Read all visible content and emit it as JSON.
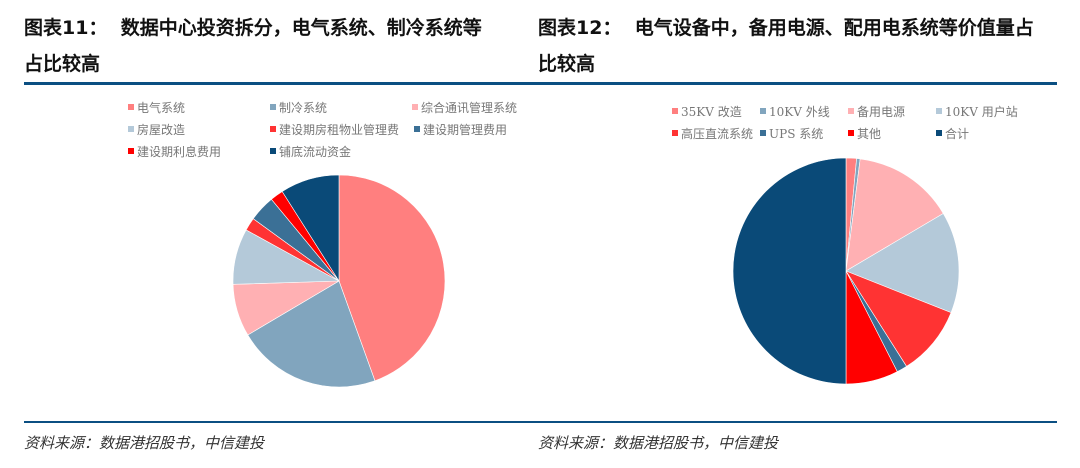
{
  "left_figure": {
    "label": "图表11：",
    "title_line1": "数据中心投资拆分，电气系统、制冷系统等",
    "title_line2": "占比较高",
    "source": "资料来源：数据港招股书，中信建投"
  },
  "right_figure": {
    "label": "图表12：",
    "title_line1": "电气设备中，备用电源、配用电系统等价值量占",
    "title_line2": "比较高",
    "source": "资料来源：数据港招股书，中信建投"
  },
  "colors": {
    "rule": "#0B4F82"
  },
  "chart_data": [
    {
      "type": "pie",
      "title": "数据中心投资拆分，电气系统、制冷系统等占比较高",
      "legend_position": "top",
      "start_angle": "12 o'clock, clockwise",
      "categories": [
        "电气系统",
        "制冷系统",
        "综合通讯管理系统",
        "房屋改造",
        "建设期房租物业管理费",
        "建设期管理费用",
        "建设期利息费用",
        "铺底流动资金"
      ],
      "values": [
        44.5,
        22.0,
        8.0,
        8.5,
        2.0,
        4.0,
        2.0,
        9.0
      ],
      "unit": "% (estimated share)",
      "colors": [
        "#FF7F7F",
        "#81A5BE",
        "#FFB0B3",
        "#B4C9D9",
        "#FF3333",
        "#3B7096",
        "#FF0000",
        "#0A4A78"
      ]
    },
    {
      "type": "pie",
      "title": "电气设备中，备用电源、配用电系统等价值量占比较高",
      "legend_position": "top",
      "start_angle": "12 o'clock, clockwise",
      "categories": [
        "35KV 改造",
        "10KV 外线",
        "备用电源",
        "10KV 用户站",
        "高压直流系统",
        "UPS 系统",
        "其他",
        "合计"
      ],
      "values": [
        1.5,
        0.5,
        14.5,
        14.5,
        10.0,
        1.5,
        7.5,
        50.0
      ],
      "unit": "% (estimated share)",
      "colors": [
        "#FF7F7F",
        "#81A5BE",
        "#FFB0B3",
        "#B4C9D9",
        "#FF3333",
        "#3B7096",
        "#FF0000",
        "#0A4A78"
      ]
    }
  ]
}
